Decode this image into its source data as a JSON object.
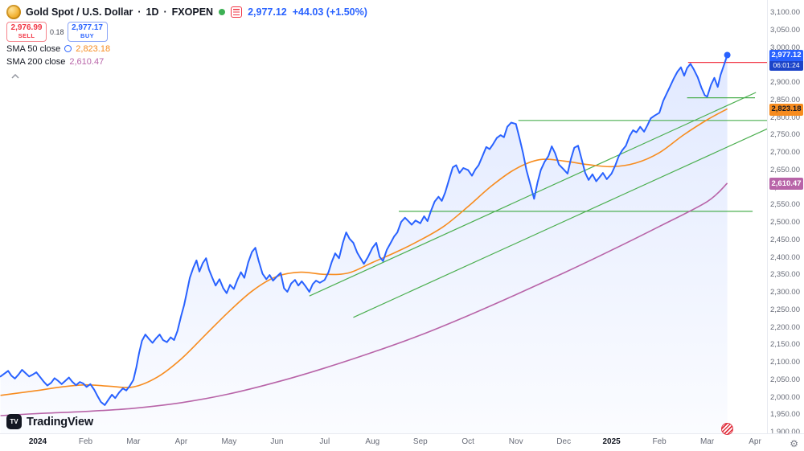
{
  "legend": {
    "symbol": "Gold Spot / U.S. Dollar",
    "separator": "·",
    "interval": "1D",
    "exchange": "FXOPEN",
    "last_price": "2,977.12",
    "change": "+44.03 (+1.50%)",
    "sell_price": "2,976.99",
    "sell_label": "SELL",
    "spread": "0.18",
    "buy_price": "2,977.17",
    "buy_label": "BUY",
    "indicators": [
      {
        "label": "SMA 50 close",
        "value": "2,823.18"
      },
      {
        "label": "SMA 200 close",
        "value": "2,610.47"
      }
    ]
  },
  "axis_labels": {
    "last_price": "2,977.12",
    "countdown": "06:01:24",
    "sma50": "2,823.18",
    "sma200": "2,610.47"
  },
  "footer": {
    "logo_mark": "TV",
    "logo_text": "TradingView"
  },
  "colors": {
    "accent_blue": "#2962ff",
    "sell_red": "#f23645",
    "status_green": "#3cb054",
    "sma50_orange": "#f78c1f",
    "sma200_purple": "#b864a8",
    "drawing_green": "#4caf50"
  },
  "chart_data": {
    "type": "line",
    "title": "Gold Spot / U.S. Dollar · 1D · FXOPEN",
    "x_unit": "months since 2024-01-01",
    "y_range": [
      1900,
      3100
    ],
    "y_ticks": {
      "min": 1900,
      "max": 3100,
      "step": 50
    },
    "x_ticks": [
      {
        "label": "2024",
        "t": 0,
        "strong": true
      },
      {
        "label": "Feb",
        "t": 1
      },
      {
        "label": "Mar",
        "t": 2
      },
      {
        "label": "Apr",
        "t": 3
      },
      {
        "label": "May",
        "t": 4
      },
      {
        "label": "Jun",
        "t": 5
      },
      {
        "label": "Jul",
        "t": 6
      },
      {
        "label": "Aug",
        "t": 7
      },
      {
        "label": "Sep",
        "t": 8
      },
      {
        "label": "Oct",
        "t": 9
      },
      {
        "label": "Nov",
        "t": 10
      },
      {
        "label": "Dec",
        "t": 11
      },
      {
        "label": "2025",
        "t": 12,
        "strong": true
      },
      {
        "label": "Feb",
        "t": 13
      },
      {
        "label": "Mar",
        "t": 14
      },
      {
        "label": "Apr",
        "t": 15
      }
    ],
    "series": [
      {
        "name": "XAUUSD close",
        "color": "#2962ff",
        "points": [
          [
            -0.78,
            2058
          ],
          [
            -0.7,
            2066
          ],
          [
            -0.62,
            2074
          ],
          [
            -0.55,
            2060
          ],
          [
            -0.48,
            2052
          ],
          [
            -0.4,
            2064
          ],
          [
            -0.33,
            2077
          ],
          [
            -0.26,
            2068
          ],
          [
            -0.18,
            2058
          ],
          [
            -0.1,
            2064
          ],
          [
            -0.03,
            2070
          ],
          [
            0.05,
            2056
          ],
          [
            0.12,
            2044
          ],
          [
            0.2,
            2032
          ],
          [
            0.28,
            2040
          ],
          [
            0.35,
            2053
          ],
          [
            0.42,
            2046
          ],
          [
            0.5,
            2036
          ],
          [
            0.58,
            2046
          ],
          [
            0.65,
            2055
          ],
          [
            0.72,
            2043
          ],
          [
            0.8,
            2033
          ],
          [
            0.88,
            2042
          ],
          [
            0.95,
            2038
          ],
          [
            1.02,
            2028
          ],
          [
            1.1,
            2036
          ],
          [
            1.18,
            2020
          ],
          [
            1.25,
            2002
          ],
          [
            1.32,
            1985
          ],
          [
            1.4,
            1976
          ],
          [
            1.48,
            1992
          ],
          [
            1.55,
            2006
          ],
          [
            1.62,
            1996
          ],
          [
            1.7,
            2012
          ],
          [
            1.78,
            2024
          ],
          [
            1.85,
            2018
          ],
          [
            1.92,
            2030
          ],
          [
            2.0,
            2048
          ],
          [
            2.06,
            2083
          ],
          [
            2.12,
            2126
          ],
          [
            2.18,
            2160
          ],
          [
            2.25,
            2178
          ],
          [
            2.32,
            2166
          ],
          [
            2.4,
            2154
          ],
          [
            2.48,
            2168
          ],
          [
            2.55,
            2178
          ],
          [
            2.62,
            2162
          ],
          [
            2.7,
            2156
          ],
          [
            2.78,
            2170
          ],
          [
            2.85,
            2162
          ],
          [
            2.92,
            2188
          ],
          [
            3.0,
            2232
          ],
          [
            3.06,
            2262
          ],
          [
            3.12,
            2300
          ],
          [
            3.18,
            2340
          ],
          [
            3.25,
            2368
          ],
          [
            3.32,
            2390
          ],
          [
            3.38,
            2358
          ],
          [
            3.45,
            2382
          ],
          [
            3.52,
            2396
          ],
          [
            3.58,
            2364
          ],
          [
            3.65,
            2340
          ],
          [
            3.72,
            2318
          ],
          [
            3.8,
            2336
          ],
          [
            3.88,
            2310
          ],
          [
            3.95,
            2296
          ],
          [
            4.02,
            2320
          ],
          [
            4.1,
            2308
          ],
          [
            4.18,
            2336
          ],
          [
            4.25,
            2356
          ],
          [
            4.32,
            2340
          ],
          [
            4.4,
            2384
          ],
          [
            4.48,
            2414
          ],
          [
            4.55,
            2426
          ],
          [
            4.62,
            2388
          ],
          [
            4.7,
            2352
          ],
          [
            4.78,
            2336
          ],
          [
            4.85,
            2348
          ],
          [
            4.92,
            2332
          ],
          [
            5.0,
            2344
          ],
          [
            5.08,
            2354
          ],
          [
            5.15,
            2310
          ],
          [
            5.22,
            2300
          ],
          [
            5.3,
            2324
          ],
          [
            5.38,
            2334
          ],
          [
            5.45,
            2318
          ],
          [
            5.52,
            2330
          ],
          [
            5.6,
            2316
          ],
          [
            5.68,
            2300
          ],
          [
            5.75,
            2322
          ],
          [
            5.82,
            2332
          ],
          [
            5.9,
            2326
          ],
          [
            6.0,
            2334
          ],
          [
            6.08,
            2356
          ],
          [
            6.15,
            2386
          ],
          [
            6.22,
            2410
          ],
          [
            6.3,
            2396
          ],
          [
            6.38,
            2440
          ],
          [
            6.45,
            2470
          ],
          [
            6.52,
            2452
          ],
          [
            6.6,
            2440
          ],
          [
            6.68,
            2412
          ],
          [
            6.75,
            2396
          ],
          [
            6.82,
            2380
          ],
          [
            6.9,
            2398
          ],
          [
            7.0,
            2426
          ],
          [
            7.08,
            2440
          ],
          [
            7.15,
            2400
          ],
          [
            7.22,
            2388
          ],
          [
            7.3,
            2420
          ],
          [
            7.38,
            2440
          ],
          [
            7.45,
            2458
          ],
          [
            7.52,
            2470
          ],
          [
            7.6,
            2500
          ],
          [
            7.68,
            2512
          ],
          [
            7.75,
            2502
          ],
          [
            7.82,
            2492
          ],
          [
            7.9,
            2504
          ],
          [
            8.0,
            2496
          ],
          [
            8.08,
            2516
          ],
          [
            8.15,
            2502
          ],
          [
            8.22,
            2530
          ],
          [
            8.3,
            2558
          ],
          [
            8.38,
            2572
          ],
          [
            8.45,
            2560
          ],
          [
            8.52,
            2584
          ],
          [
            8.6,
            2620
          ],
          [
            8.68,
            2656
          ],
          [
            8.75,
            2662
          ],
          [
            8.82,
            2640
          ],
          [
            8.9,
            2654
          ],
          [
            9.0,
            2648
          ],
          [
            9.08,
            2632
          ],
          [
            9.15,
            2650
          ],
          [
            9.22,
            2662
          ],
          [
            9.3,
            2688
          ],
          [
            9.38,
            2714
          ],
          [
            9.45,
            2708
          ],
          [
            9.52,
            2722
          ],
          [
            9.6,
            2740
          ],
          [
            9.68,
            2748
          ],
          [
            9.75,
            2742
          ],
          [
            9.82,
            2772
          ],
          [
            9.9,
            2784
          ],
          [
            10.0,
            2780
          ],
          [
            10.08,
            2736
          ],
          [
            10.15,
            2696
          ],
          [
            10.22,
            2648
          ],
          [
            10.3,
            2608
          ],
          [
            10.38,
            2566
          ],
          [
            10.45,
            2612
          ],
          [
            10.52,
            2648
          ],
          [
            10.6,
            2672
          ],
          [
            10.68,
            2688
          ],
          [
            10.75,
            2716
          ],
          [
            10.82,
            2696
          ],
          [
            10.9,
            2664
          ],
          [
            11.0,
            2650
          ],
          [
            11.08,
            2638
          ],
          [
            11.15,
            2680
          ],
          [
            11.22,
            2712
          ],
          [
            11.3,
            2718
          ],
          [
            11.38,
            2676
          ],
          [
            11.45,
            2640
          ],
          [
            11.52,
            2620
          ],
          [
            11.6,
            2636
          ],
          [
            11.68,
            2616
          ],
          [
            11.75,
            2628
          ],
          [
            11.82,
            2640
          ],
          [
            11.9,
            2622
          ],
          [
            12.0,
            2638
          ],
          [
            12.08,
            2662
          ],
          [
            12.15,
            2688
          ],
          [
            12.22,
            2704
          ],
          [
            12.3,
            2718
          ],
          [
            12.38,
            2746
          ],
          [
            12.45,
            2762
          ],
          [
            12.52,
            2756
          ],
          [
            12.6,
            2772
          ],
          [
            12.68,
            2758
          ],
          [
            12.75,
            2776
          ],
          [
            12.82,
            2796
          ],
          [
            12.9,
            2804
          ],
          [
            13.0,
            2812
          ],
          [
            13.08,
            2846
          ],
          [
            13.15,
            2866
          ],
          [
            13.22,
            2886
          ],
          [
            13.3,
            2910
          ],
          [
            13.38,
            2930
          ],
          [
            13.45,
            2942
          ],
          [
            13.52,
            2918
          ],
          [
            13.58,
            2940
          ],
          [
            13.65,
            2952
          ],
          [
            13.72,
            2936
          ],
          [
            13.8,
            2914
          ],
          [
            13.88,
            2884
          ],
          [
            13.95,
            2862
          ],
          [
            14.0,
            2858
          ],
          [
            14.08,
            2892
          ],
          [
            14.15,
            2912
          ],
          [
            14.22,
            2886
          ],
          [
            14.28,
            2920
          ],
          [
            14.35,
            2948
          ],
          [
            14.42,
            2977.12
          ]
        ]
      },
      {
        "name": "SMA 50",
        "color": "#f78c1f",
        "points": [
          [
            -0.78,
            2004
          ],
          [
            0,
            2018
          ],
          [
            0.5,
            2028
          ],
          [
            1,
            2034
          ],
          [
            1.5,
            2030
          ],
          [
            2,
            2028
          ],
          [
            2.5,
            2056
          ],
          [
            3,
            2108
          ],
          [
            3.5,
            2176
          ],
          [
            4,
            2244
          ],
          [
            4.5,
            2304
          ],
          [
            5,
            2344
          ],
          [
            5.5,
            2356
          ],
          [
            6,
            2350
          ],
          [
            6.5,
            2354
          ],
          [
            7,
            2384
          ],
          [
            7.5,
            2414
          ],
          [
            8,
            2448
          ],
          [
            8.5,
            2488
          ],
          [
            9,
            2544
          ],
          [
            9.5,
            2604
          ],
          [
            10,
            2652
          ],
          [
            10.5,
            2678
          ],
          [
            11,
            2674
          ],
          [
            11.5,
            2664
          ],
          [
            12,
            2658
          ],
          [
            12.5,
            2668
          ],
          [
            13,
            2698
          ],
          [
            13.5,
            2748
          ],
          [
            14,
            2792
          ],
          [
            14.42,
            2823.18
          ]
        ]
      },
      {
        "name": "SMA 200",
        "color": "#b864a8",
        "points": [
          [
            -0.78,
            1946
          ],
          [
            0,
            1952
          ],
          [
            1,
            1958
          ],
          [
            2,
            1967
          ],
          [
            3,
            1983
          ],
          [
            4,
            2008
          ],
          [
            5,
            2042
          ],
          [
            6,
            2082
          ],
          [
            7,
            2127
          ],
          [
            8,
            2176
          ],
          [
            9,
            2232
          ],
          [
            10,
            2292
          ],
          [
            11,
            2354
          ],
          [
            12,
            2419
          ],
          [
            13,
            2487
          ],
          [
            14,
            2558
          ],
          [
            14.42,
            2610.47
          ]
        ]
      }
    ],
    "drawings": {
      "color": "#4caf50",
      "trendlines": [
        {
          "from": [
            5.68,
            2288
          ],
          "to": [
            15.02,
            2870
          ]
        },
        {
          "from": [
            6.6,
            2227
          ],
          "to": [
            15.35,
            2772
          ]
        }
      ],
      "levels": [
        {
          "price": 2530,
          "t1": 7.55,
          "t2": 14.95
        },
        {
          "price": 2790,
          "t1": 10.05,
          "t2": 15.3
        },
        {
          "price": 2855,
          "t1": 13.58,
          "t2": 15.0
        }
      ],
      "alert_line": {
        "price": 2956,
        "t1": 13.6,
        "t2": 16.0,
        "color": "#f23645"
      },
      "marker": {
        "t": 14.42,
        "price": 2977.12
      }
    }
  }
}
